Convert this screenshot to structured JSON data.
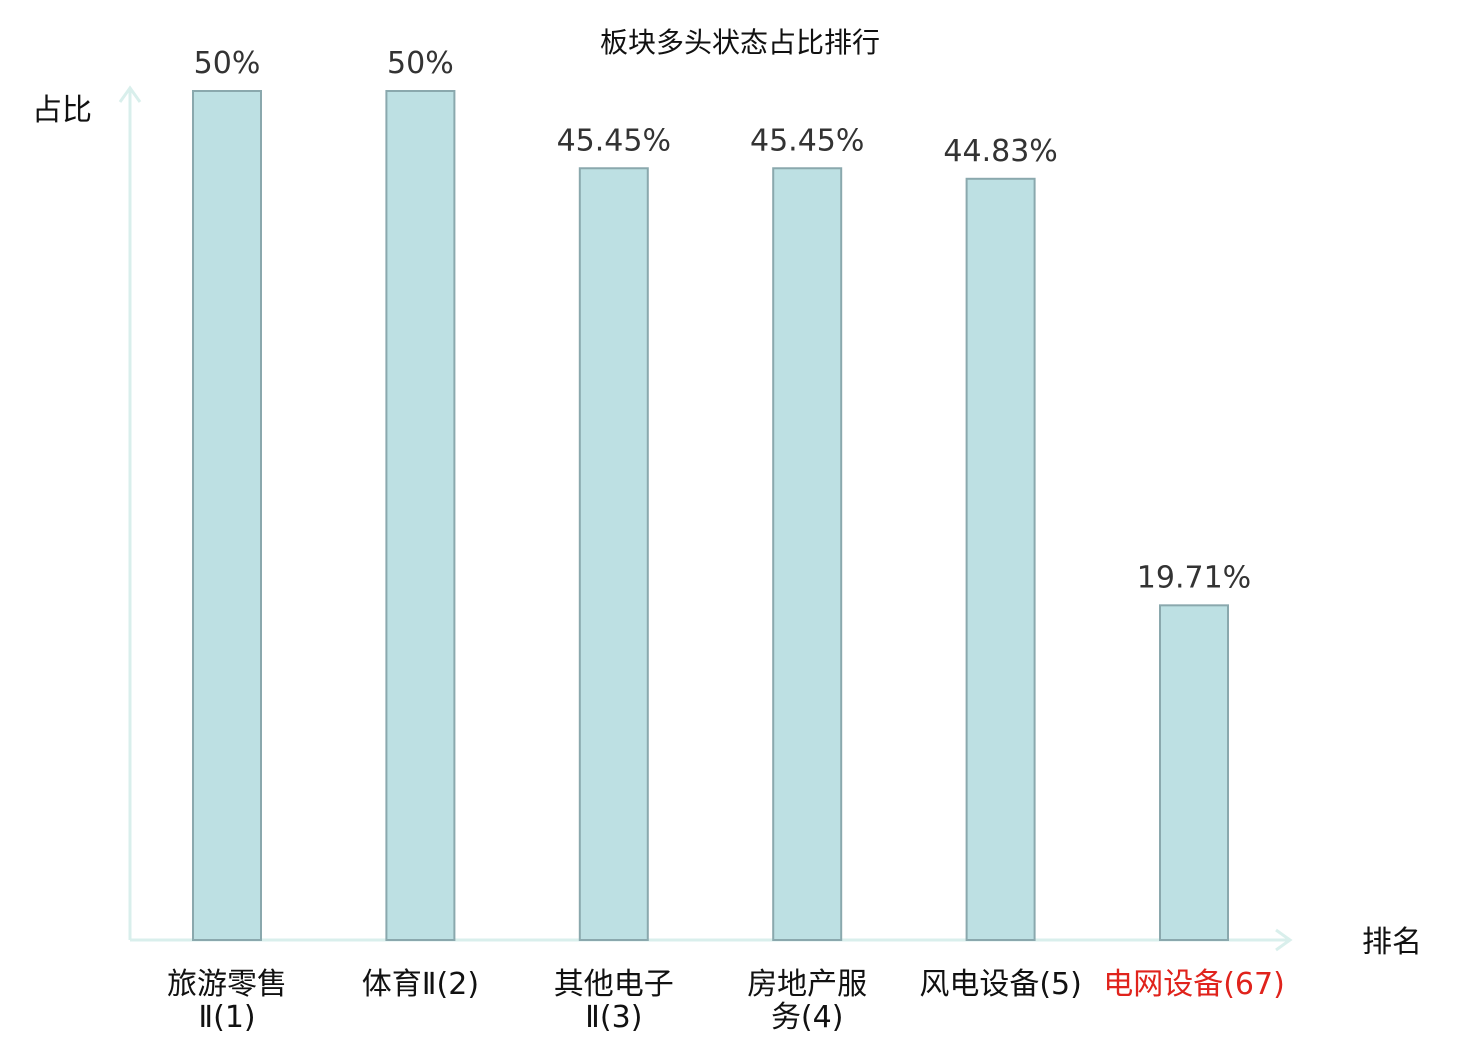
{
  "chart_data": {
    "type": "bar",
    "title": "板块多头状态占比排行",
    "xlabel": "排名",
    "ylabel": "占比",
    "ylim": [
      0,
      50
    ],
    "grid": false,
    "categories": [
      [
        "旅游零售",
        "Ⅱ(1)"
      ],
      [
        "体育Ⅱ(2)"
      ],
      [
        "其他电子",
        "Ⅱ(3)"
      ],
      [
        "房地产服",
        "务(4)"
      ],
      [
        "风电设备(5)"
      ],
      [
        "电网设备(67)"
      ]
    ],
    "values": [
      50,
      50,
      45.45,
      45.45,
      44.83,
      19.71
    ],
    "value_labels": [
      "50%",
      "50%",
      "45.45%",
      "45.45%",
      "44.83%",
      "19.71%"
    ],
    "highlight_index": 5,
    "colors": {
      "bar_fill": "#bde0e3",
      "bar_stroke": "#8aa8ad",
      "axis": "#d9efec",
      "category_text": "#111111",
      "highlight_text": "#e0231c"
    }
  }
}
